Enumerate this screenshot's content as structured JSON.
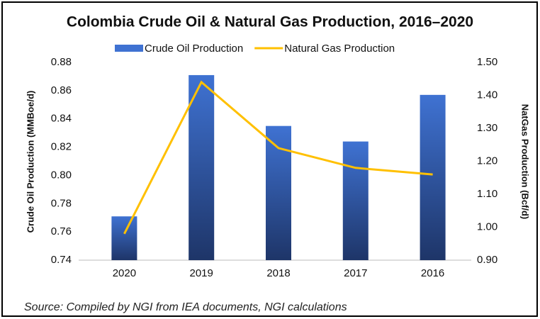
{
  "chart_data": {
    "type": "bar_line",
    "title": "Colombia Crude Oil & Natural Gas Production, 2016–2020",
    "y_label": "Crude Oil Production (MMBoe/d)",
    "y2_label": "NatGas Production (Bcf/d)",
    "source": "Source: Compiled by NGI from IEA documents, NGI calculations",
    "categories": [
      "2020",
      "2019",
      "2018",
      "2017",
      "2016"
    ],
    "series": [
      {
        "name": "Crude Oil Production",
        "type": "bar",
        "color": "#3f72d2",
        "values": [
          0.771,
          0.871,
          0.835,
          0.824,
          0.857
        ]
      },
      {
        "name": "Natural Gas Production",
        "type": "line",
        "axis": "y2",
        "color": "#ffc000",
        "values": [
          0.98,
          1.44,
          1.24,
          1.18,
          1.16
        ]
      }
    ],
    "ylim": [
      0.74,
      0.88
    ],
    "yticks": [
      0.74,
      0.76,
      0.78,
      {
        "value": 0.8,
        "label": "0.80"
      },
      0.82,
      0.84,
      0.86,
      0.88
    ],
    "y2lim": [
      0.9,
      1.5
    ],
    "y2ticks": [
      {
        "value": 0.9,
        "label": "0.90"
      },
      {
        "value": 1.0,
        "label": "1.00"
      },
      {
        "value": 1.1,
        "label": "1.10"
      },
      {
        "value": 1.2,
        "label": "1.20"
      },
      {
        "value": 1.3,
        "label": "1.30"
      },
      {
        "value": 1.4,
        "label": "1.40"
      },
      {
        "value": 1.5,
        "label": "1.50"
      }
    ],
    "grid": false,
    "legend": "top"
  }
}
